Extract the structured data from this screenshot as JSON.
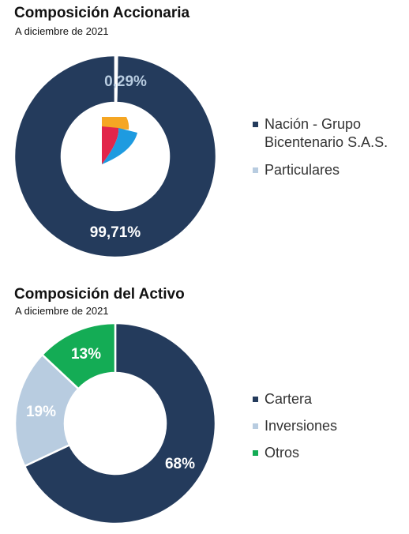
{
  "chart_data": [
    {
      "type": "pie",
      "title": "Composición Accionaria",
      "subtitle": "A diciembre de 2021",
      "categories": [
        "Nación - Grupo Bicentenario S.A.S.",
        "Particulares"
      ],
      "values": [
        99.71,
        0.29
      ],
      "value_labels": [
        "99,71%",
        "0,29%"
      ],
      "colors": [
        "#243B5C",
        "#B8CCE0"
      ],
      "label_colors": [
        "#ffffff",
        "#B8CCE0"
      ],
      "legend_position": "right",
      "center_logo": "logo"
    },
    {
      "type": "pie",
      "title": "Composición del Activo",
      "subtitle": "A diciembre de 2021",
      "categories": [
        "Cartera",
        "Inversiones",
        "Otros"
      ],
      "values": [
        68,
        19,
        13
      ],
      "value_labels": [
        "68%",
        "19%",
        "13%"
      ],
      "colors": [
        "#243B5C",
        "#B8CCE0",
        "#14AC55"
      ],
      "label_colors": [
        "#ffffff",
        "#ffffff",
        "#ffffff"
      ],
      "legend_position": "right"
    }
  ]
}
